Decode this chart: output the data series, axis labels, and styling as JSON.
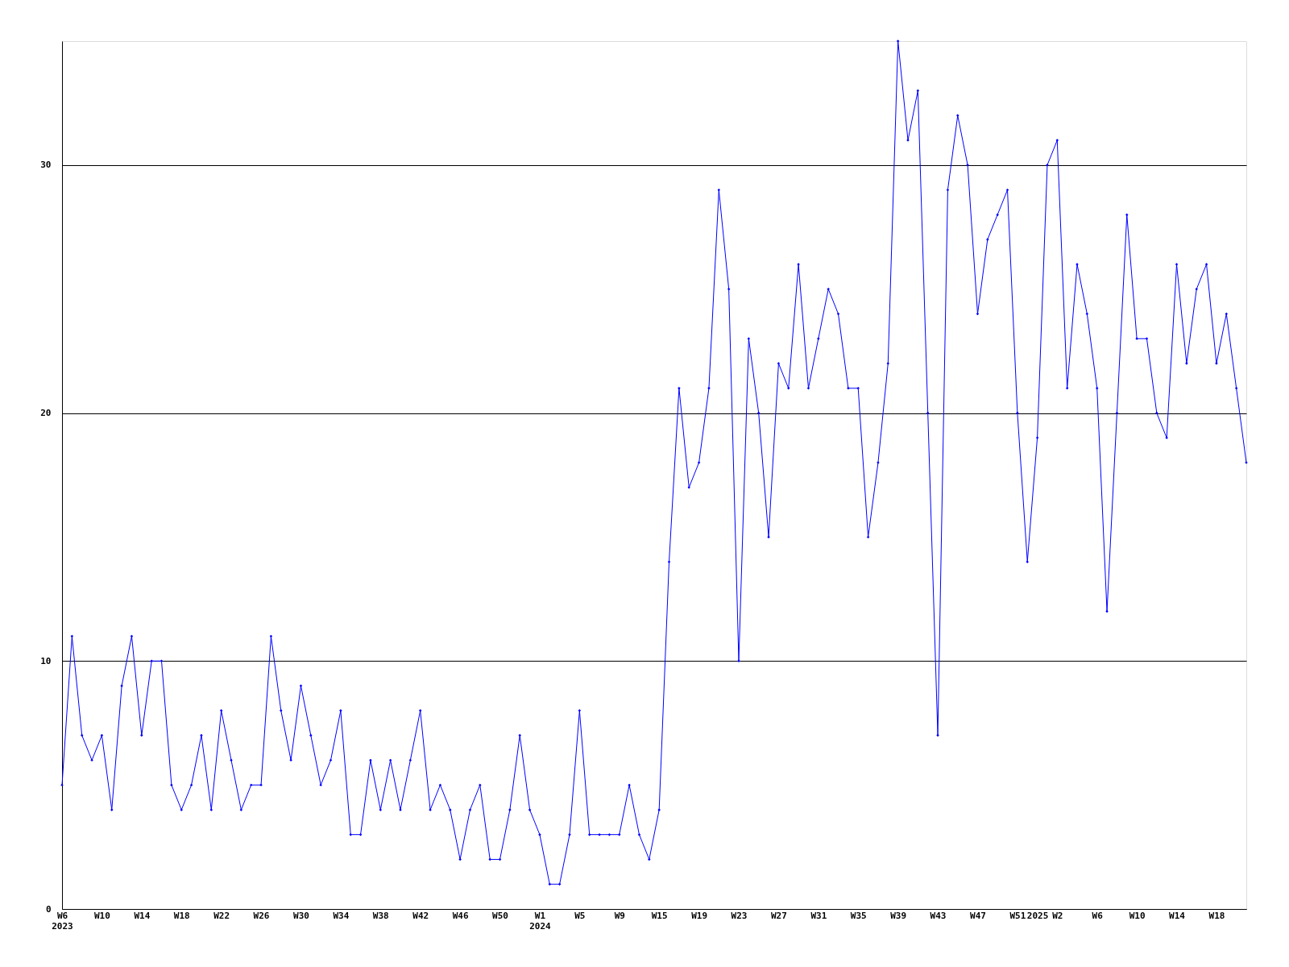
{
  "chart_data": {
    "type": "line",
    "marker": "diamond",
    "grid": "y",
    "categories": [
      "W6\n2023",
      null,
      null,
      null,
      "W10",
      null,
      null,
      null,
      "W14",
      null,
      null,
      null,
      "W18",
      null,
      null,
      null,
      "W22",
      null,
      null,
      null,
      "W26",
      null,
      null,
      null,
      "W30",
      null,
      null,
      null,
      "W34",
      null,
      null,
      null,
      "W38",
      null,
      null,
      null,
      "W42",
      null,
      null,
      null,
      "W46",
      null,
      null,
      null,
      "W50",
      null,
      null,
      null,
      "W1\n2024",
      null,
      null,
      null,
      "W5",
      null,
      null,
      null,
      "W9",
      null,
      null,
      null,
      "W15",
      null,
      null,
      null,
      "W19",
      null,
      null,
      null,
      "W23",
      null,
      null,
      null,
      "W27",
      null,
      null,
      null,
      "W31",
      null,
      null,
      null,
      "W35",
      null,
      null,
      null,
      "W39",
      null,
      null,
      null,
      "W43",
      null,
      null,
      null,
      "W47",
      null,
      null,
      null,
      "W51",
      null,
      "2025",
      null,
      "W2",
      null,
      null,
      null,
      "W6",
      null,
      null,
      null,
      "W10",
      null,
      null,
      null,
      "W14",
      null,
      null,
      null,
      "W18",
      null,
      null,
      null
    ],
    "series": [
      {
        "color": "#0000ff",
        "values": [
          5,
          11,
          7,
          6,
          7,
          4,
          9,
          11,
          7,
          10,
          10,
          5,
          4,
          5,
          7,
          4,
          8,
          6,
          4,
          5,
          5,
          11,
          8,
          6,
          9,
          7,
          5,
          6,
          8,
          3,
          3,
          6,
          4,
          6,
          4,
          6,
          8,
          4,
          5,
          4,
          2,
          4,
          5,
          2,
          2,
          4,
          7,
          4,
          3,
          1,
          1,
          3,
          8,
          3,
          3,
          3,
          3,
          5,
          3,
          2,
          4,
          14,
          21,
          17,
          18,
          21,
          29,
          25,
          10,
          23,
          20,
          15,
          22,
          21,
          26,
          21,
          23,
          25,
          24,
          21,
          21,
          15,
          18,
          22,
          35,
          31,
          33,
          20,
          7,
          29,
          32,
          30,
          24,
          27,
          28,
          29,
          20,
          14,
          19,
          30,
          31,
          21,
          26,
          24,
          21,
          12,
          20,
          28,
          23,
          23,
          20,
          19,
          26,
          22,
          25,
          26,
          22,
          24,
          21,
          18
        ]
      }
    ],
    "ylim": [
      0,
      35
    ],
    "yticks": [
      0,
      10,
      20,
      30
    ]
  }
}
